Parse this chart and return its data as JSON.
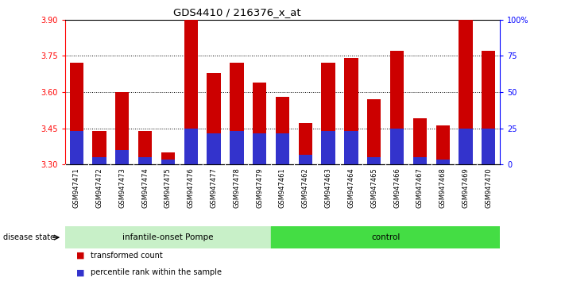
{
  "title": "GDS4410 / 216376_x_at",
  "samples": [
    "GSM947471",
    "GSM947472",
    "GSM947473",
    "GSM947474",
    "GSM947475",
    "GSM947476",
    "GSM947477",
    "GSM947478",
    "GSM947479",
    "GSM947461",
    "GSM947462",
    "GSM947463",
    "GSM947464",
    "GSM947465",
    "GSM947466",
    "GSM947467",
    "GSM947468",
    "GSM947469",
    "GSM947470"
  ],
  "transformed_count": [
    3.72,
    3.44,
    3.6,
    3.44,
    3.35,
    3.9,
    3.68,
    3.72,
    3.64,
    3.58,
    3.47,
    3.72,
    3.74,
    3.57,
    3.77,
    3.49,
    3.46,
    3.9,
    3.77
  ],
  "percentile_rank_val": [
    3.44,
    3.33,
    3.36,
    3.33,
    3.32,
    3.45,
    3.43,
    3.44,
    3.43,
    3.43,
    3.34,
    3.44,
    3.44,
    3.33,
    3.45,
    3.33,
    3.32,
    3.45,
    3.45
  ],
  "ymin": 3.3,
  "ymax": 3.9,
  "yticks": [
    3.3,
    3.45,
    3.6,
    3.75,
    3.9
  ],
  "right_yticks": [
    0,
    25,
    50,
    75,
    100
  ],
  "right_ytick_labels": [
    "0",
    "25",
    "50",
    "75",
    "100%"
  ],
  "bar_color": "#cc0000",
  "percentile_color": "#3333cc",
  "bar_bottom": 3.3,
  "group1_label": "infantile-onset Pompe",
  "group2_label": "control",
  "group1_count": 9,
  "group2_count": 10,
  "disease_state_label": "disease state",
  "legend_bar": "transformed count",
  "legend_percentile": "percentile rank within the sample",
  "group1_color": "#c8f0c8",
  "group2_color": "#44dd44",
  "axis_bg": "#d0d0d0"
}
